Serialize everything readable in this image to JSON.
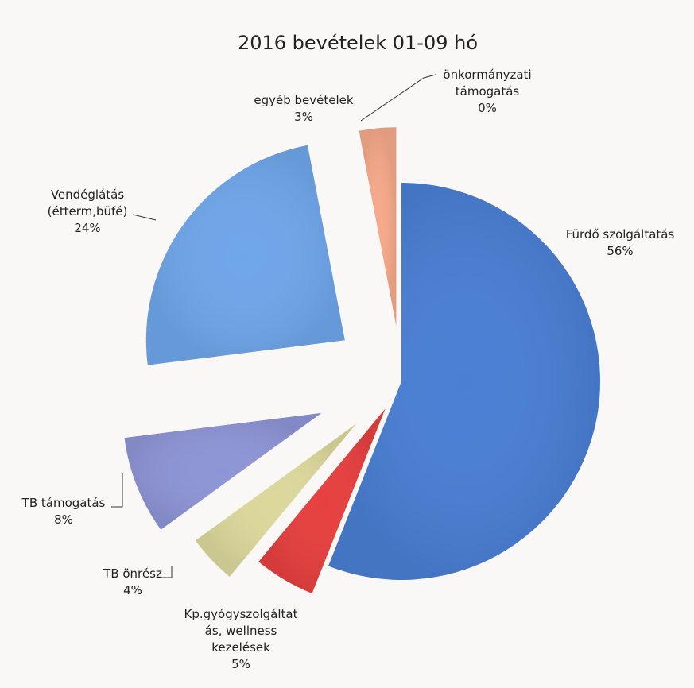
{
  "chart_data": {
    "type": "pie",
    "title": "2016 bevételek 01-09 hó",
    "slices": [
      {
        "label": [
          "Fürdő szolgáltatás"
        ],
        "pct_label": "56%",
        "value": 56,
        "color": "#4a7fd4"
      },
      {
        "label": [
          "Kp.gyógyszolgáltat",
          "ás, wellness",
          "kezelések"
        ],
        "pct_label": "5%",
        "value": 5,
        "color": "#e6403f"
      },
      {
        "label": [
          "TB önrész"
        ],
        "pct_label": "4%",
        "value": 4,
        "color": "#dcd89c"
      },
      {
        "label": [
          "TB támogatás"
        ],
        "pct_label": "8%",
        "value": 8,
        "color": "#8e95d6"
      },
      {
        "label": [
          "Vendéglátás",
          "(étterm,büfé)"
        ],
        "pct_label": "24%",
        "value": 24,
        "color": "#6fa6ea"
      },
      {
        "label": [
          "egyéb bevételek"
        ],
        "pct_label": "3%",
        "value": 3,
        "color": "#f6a98a"
      },
      {
        "label": [
          "önkormányzati",
          "támogatás"
        ],
        "pct_label": "0%",
        "value": 0,
        "color": "#9cc0e0"
      }
    ]
  }
}
